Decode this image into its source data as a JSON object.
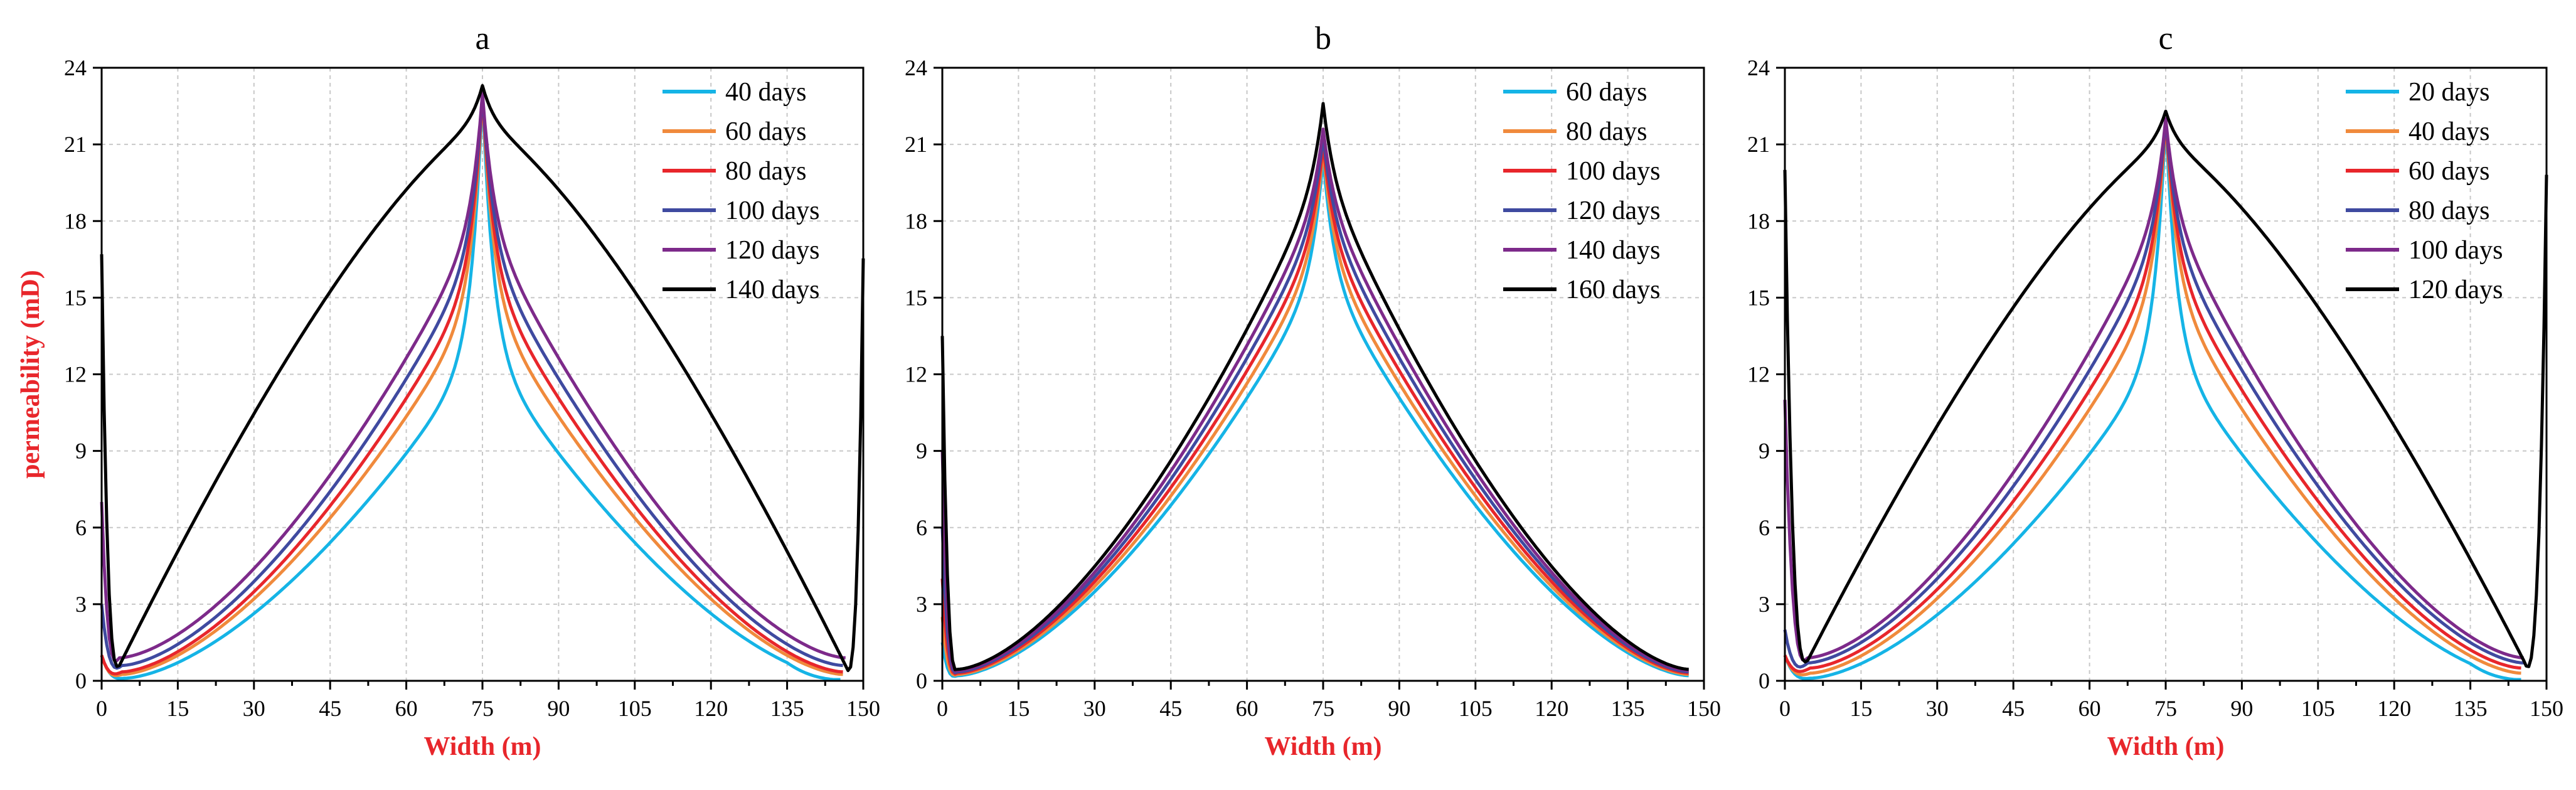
{
  "colors": {
    "series": [
      "#15b4e6",
      "#f08a3c",
      "#e8262b",
      "#3f4aa0",
      "#7d2a8a",
      "#000000"
    ],
    "axis_label": "#e8262b",
    "grid": "#c8c8c8"
  },
  "chart_data": [
    {
      "type": "line",
      "title": "a",
      "xlabel": "Width (m)",
      "ylabel": "permeability (mD)",
      "xlim": [
        0,
        150
      ],
      "ylim": [
        0,
        24
      ],
      "xticks": [
        0,
        15,
        30,
        45,
        60,
        75,
        90,
        105,
        120,
        135,
        150
      ],
      "yticks": [
        0,
        3,
        6,
        9,
        12,
        15,
        18,
        21,
        24
      ],
      "grid": true,
      "legend": "top-right",
      "series": [
        {
          "name": "40 days",
          "start": 1.0,
          "minx": 4.5,
          "edge": 0.1,
          "edge_end": 135,
          "peak": 23.0,
          "near_peak": 13.0
        },
        {
          "name": "60 days",
          "start": 1.0,
          "minx": 4.0,
          "edge": 0.25,
          "peak": 23.0,
          "near_peak": 15.0
        },
        {
          "name": "80 days",
          "start": 1.0,
          "minx": 4.0,
          "edge": 0.35,
          "peak": 23.0,
          "near_peak": 16.0
        },
        {
          "name": "100 days",
          "start": 3.0,
          "minx": 4.0,
          "edge": 0.6,
          "peak": 23.0,
          "near_peak": 17.0
        },
        {
          "name": "120 days",
          "start": 7.0,
          "minx": 3.5,
          "edge": 0.9,
          "peak": 23.0,
          "near_peak": 18.0
        },
        {
          "name": "140 days",
          "start": 16.7,
          "minx": 3.5,
          "edge": 0.6,
          "peak": 23.3,
          "near_peak": 21.8,
          "broad": true
        }
      ]
    },
    {
      "type": "line",
      "title": "b",
      "xlabel": "Width (m)",
      "ylabel": "",
      "xlim": [
        0,
        150
      ],
      "ylim": [
        0,
        24
      ],
      "xticks": [
        0,
        15,
        30,
        45,
        60,
        75,
        90,
        105,
        120,
        135,
        150
      ],
      "yticks": [
        0,
        3,
        6,
        9,
        12,
        15,
        18,
        21,
        24
      ],
      "grid": true,
      "legend": "top-right",
      "series": [
        {
          "name": "60 days",
          "start": 1.5,
          "minx": 3.0,
          "edge": 0.2,
          "peak": 20.5,
          "near_peak": 16.0
        },
        {
          "name": "80 days",
          "start": 2.5,
          "minx": 3.0,
          "edge": 0.25,
          "peak": 20.8,
          "near_peak": 16.8
        },
        {
          "name": "100 days",
          "start": 4.0,
          "minx": 3.0,
          "edge": 0.3,
          "peak": 21.0,
          "near_peak": 17.5
        },
        {
          "name": "120 days",
          "start": 6.0,
          "minx": 3.0,
          "edge": 0.35,
          "peak": 21.3,
          "near_peak": 18.2
        },
        {
          "name": "140 days",
          "start": 9.0,
          "minx": 3.0,
          "edge": 0.4,
          "peak": 21.6,
          "near_peak": 18.9
        },
        {
          "name": "160 days",
          "start": 13.5,
          "minx": 3.0,
          "edge": 0.45,
          "peak": 22.6,
          "near_peak": 19.8
        }
      ]
    },
    {
      "type": "line",
      "title": "c",
      "xlabel": "Width (m)",
      "ylabel": "",
      "xlim": [
        0,
        150
      ],
      "ylim": [
        0,
        24
      ],
      "xticks": [
        0,
        15,
        30,
        45,
        60,
        75,
        90,
        105,
        120,
        135,
        150
      ],
      "yticks": [
        0,
        3,
        6,
        9,
        12,
        15,
        18,
        21,
        24
      ],
      "grid": true,
      "legend": "top-right",
      "series": [
        {
          "name": "20 days",
          "start": 1.0,
          "minx": 5.0,
          "edge": 0.1,
          "edge_end": 135,
          "peak": 22.0,
          "near_peak": 13.0
        },
        {
          "name": "40 days",
          "start": 1.0,
          "minx": 5.0,
          "edge": 0.3,
          "peak": 22.0,
          "near_peak": 15.5
        },
        {
          "name": "60 days",
          "start": 1.0,
          "minx": 5.0,
          "edge": 0.5,
          "peak": 22.0,
          "near_peak": 16.5
        },
        {
          "name": "80 days",
          "start": 2.0,
          "minx": 4.5,
          "edge": 0.7,
          "peak": 22.0,
          "near_peak": 17.5
        },
        {
          "name": "100 days",
          "start": 11.0,
          "minx": 4.5,
          "edge": 0.9,
          "peak": 22.0,
          "near_peak": 18.5
        },
        {
          "name": "120 days",
          "start": 20.0,
          "minx": 4.5,
          "edge": 0.8,
          "peak": 22.3,
          "near_peak": 21.0,
          "broad": true
        }
      ]
    }
  ]
}
